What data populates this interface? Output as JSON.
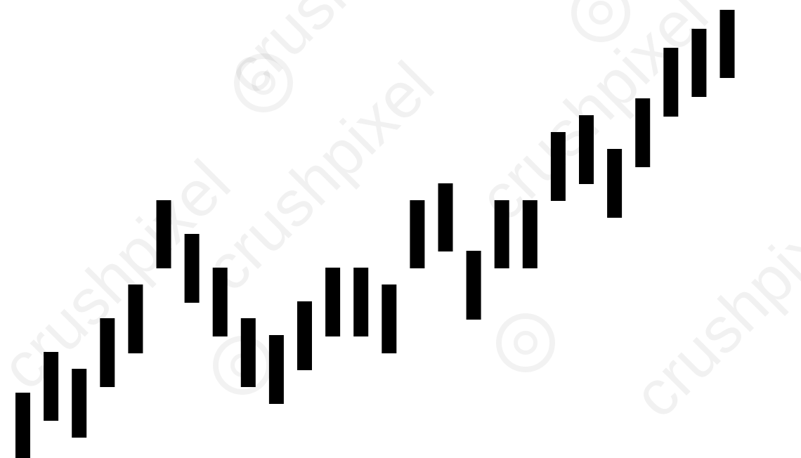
{
  "watermark": {
    "brand": "crushpixel",
    "text": "crushpixel",
    "icon": "aperture-icon",
    "opacity": 0.05
  },
  "chart_data": {
    "type": "bar",
    "title": "",
    "xlabel": "",
    "ylabel": "",
    "grid": false,
    "legend": "none",
    "bar_color": "#000000",
    "ylim": [
      0,
      652
    ],
    "series": [
      {
        "values": [
          {
            "low": 0,
            "high": 93
          },
          {
            "low": 53,
            "high": 151
          },
          {
            "low": 29,
            "high": 127
          },
          {
            "low": 101,
            "high": 199
          },
          {
            "low": 149,
            "high": 247
          },
          {
            "low": 270,
            "high": 367
          },
          {
            "low": 221,
            "high": 319
          },
          {
            "low": 173,
            "high": 271
          },
          {
            "low": 101,
            "high": 199
          },
          {
            "low": 77,
            "high": 175
          },
          {
            "low": 125,
            "high": 223
          },
          {
            "low": 173,
            "high": 271
          },
          {
            "low": 173,
            "high": 271
          },
          {
            "low": 149,
            "high": 247
          },
          {
            "low": 270,
            "high": 367
          },
          {
            "low": 294,
            "high": 391
          },
          {
            "low": 197,
            "high": 295
          },
          {
            "low": 270,
            "high": 367
          },
          {
            "low": 270,
            "high": 367
          },
          {
            "low": 366,
            "high": 464
          },
          {
            "low": 390,
            "high": 488
          },
          {
            "low": 342,
            "high": 440
          },
          {
            "low": 414,
            "high": 512
          },
          {
            "low": 486,
            "high": 584
          },
          {
            "low": 514,
            "high": 611
          },
          {
            "low": 541,
            "high": 638
          }
        ]
      }
    ]
  }
}
